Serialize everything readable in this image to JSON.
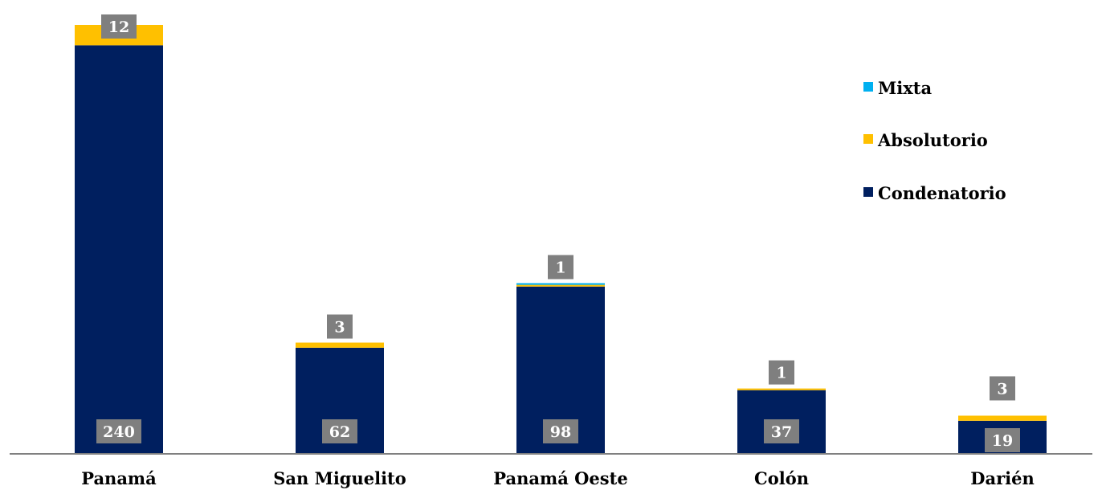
{
  "chart_data": {
    "type": "bar",
    "stacked": true,
    "categories": [
      "Panamá",
      "San Miguelito",
      "Panamá Oeste",
      "Colón",
      "Darién"
    ],
    "series": [
      {
        "name": "Condenatorio",
        "values": [
          240,
          62,
          98,
          37,
          19
        ],
        "color": "#001f5f"
      },
      {
        "name": "Absolutorio",
        "values": [
          12,
          3,
          1,
          1,
          3
        ],
        "color": "#ffc000"
      },
      {
        "name": "Mixta",
        "values": [
          0,
          0,
          1,
          0,
          0
        ],
        "color": "#00b0f0"
      }
    ],
    "data_labels": {
      "Condenatorio": [
        "240",
        "62",
        "98",
        "37",
        "19"
      ],
      "Absolutorio_or_Mixta_top": [
        "12",
        "3",
        "1",
        "1",
        "3"
      ]
    },
    "legend": {
      "placement": "top-right",
      "order": [
        "Mixta",
        "Absolutorio",
        "Condenatorio"
      ]
    },
    "label_box_color": "#7f7f7f",
    "axis_color": "#808080",
    "ylim": [
      0,
      252
    ]
  }
}
